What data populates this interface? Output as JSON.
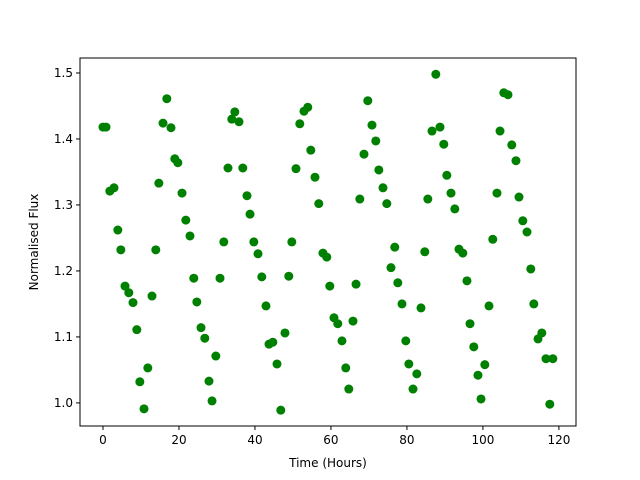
{
  "chart_data": {
    "type": "scatter",
    "xlabel": "Time (Hours)",
    "ylabel": "Normalised Flux",
    "color": "#008000",
    "x": [
      0,
      0.8,
      1.8,
      2.9,
      3.9,
      4.7,
      5.8,
      6.8,
      7.9,
      8.9,
      9.7,
      10.8,
      11.8,
      12.9,
      13.9,
      14.7,
      15.8,
      16.8,
      17.9,
      18.9,
      19.7,
      20.8,
      21.8,
      22.9,
      23.9,
      24.7,
      25.8,
      26.8,
      27.9,
      28.7,
      29.7,
      30.8,
      31.8,
      32.9,
      33.9,
      34.7,
      35.8,
      36.8,
      37.9,
      38.7,
      39.7,
      40.8,
      41.8,
      42.9,
      43.7,
      44.7,
      45.8,
      46.8,
      47.9,
      48.9,
      49.7,
      50.8,
      51.8,
      52.9,
      53.9,
      54.7,
      55.8,
      56.8,
      57.9,
      58.9,
      59.7,
      60.8,
      61.8,
      62.9,
      63.9,
      64.7,
      65.8,
      66.6,
      67.6,
      68.7,
      69.7,
      70.8,
      71.8,
      72.6,
      73.7,
      74.7,
      75.8,
      76.8,
      77.6,
      78.7,
      79.7,
      80.5,
      81.6,
      82.6,
      83.7,
      84.7,
      85.5,
      86.6,
      87.6,
      88.7,
      89.7,
      90.5,
      91.6,
      92.6,
      93.7,
      94.7,
      95.8,
      96.6,
      97.6,
      98.7,
      99.5,
      100.5,
      101.6,
      102.6,
      103.7,
      104.5,
      105.5,
      106.6,
      107.6,
      108.7,
      109.5,
      110.5,
      111.6,
      112.6,
      113.4,
      114.5,
      115.5,
      116.6,
      117.6,
      118.4
    ],
    "values": [
      1.418,
      1.418,
      1.321,
      1.326,
      1.262,
      1.232,
      1.177,
      1.167,
      1.152,
      1.111,
      1.032,
      0.991,
      1.053,
      1.162,
      1.232,
      1.333,
      1.424,
      1.461,
      1.417,
      1.37,
      1.364,
      1.318,
      1.277,
      1.253,
      1.189,
      1.153,
      1.114,
      1.098,
      1.033,
      1.003,
      1.071,
      1.189,
      1.244,
      1.356,
      1.43,
      1.441,
      1.426,
      1.356,
      1.314,
      1.286,
      1.244,
      1.226,
      1.191,
      1.147,
      1.089,
      1.092,
      1.059,
      0.989,
      1.106,
      1.192,
      1.244,
      1.355,
      1.423,
      1.442,
      1.448,
      1.383,
      1.342,
      1.302,
      1.227,
      1.221,
      1.177,
      1.129,
      1.12,
      1.094,
      1.053,
      1.021,
      1.124,
      1.18,
      1.309,
      1.377,
      1.458,
      1.421,
      1.397,
      1.353,
      1.326,
      1.302,
      1.205,
      1.236,
      1.182,
      1.15,
      1.094,
      1.059,
      1.021,
      1.044,
      1.144,
      1.229,
      1.309,
      1.412,
      1.498,
      1.418,
      1.392,
      1.345,
      1.318,
      1.294,
      1.233,
      1.227,
      1.185,
      1.12,
      1.085,
      1.042,
      1.006,
      1.058,
      1.147,
      1.248,
      1.318,
      1.412,
      1.47,
      1.467,
      1.391,
      1.367,
      1.312,
      1.276,
      1.259,
      1.203,
      1.15,
      1.097,
      1.106,
      1.067,
      0.998,
      1.067
    ],
    "xlim": [
      -6.05,
      124.5
    ],
    "xticks": [
      0,
      20,
      40,
      60,
      80,
      100,
      120
    ],
    "ylim": [
      0.965,
      1.5227
    ],
    "yticks": [
      {
        "value": 1,
        "label": "1.0"
      },
      1.1,
      1.2,
      1.3,
      1.4,
      1.5
    ]
  }
}
